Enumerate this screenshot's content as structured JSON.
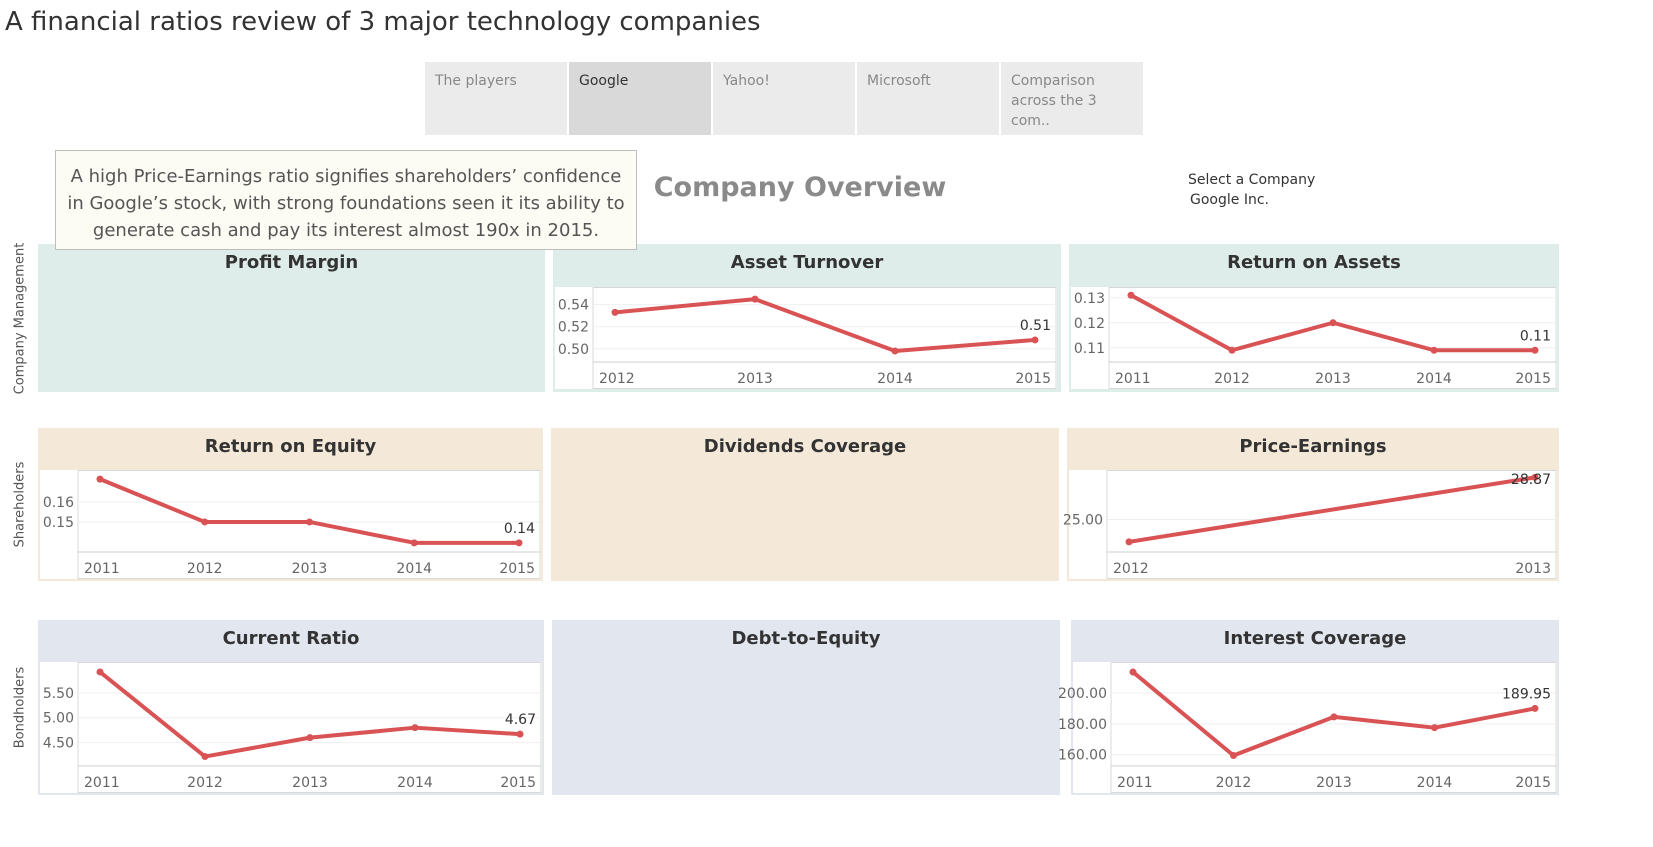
{
  "title": "A financial ratios review of 3 major technology companies",
  "tabs": [
    {
      "label": "The players"
    },
    {
      "label": "Google"
    },
    {
      "label": "Yahoo!"
    },
    {
      "label": "Microsoft"
    },
    {
      "label": "Comparison across the 3 com.."
    }
  ],
  "tooltip": "A high Price-Earnings ratio signifies shareholders’ confidence in Google’s stock, with strong foundations seen it its ability to generate cash and pay its interest almost 190x in 2015.",
  "overview_title": "Company Overview",
  "company_select": {
    "label": "Select a Company",
    "value": "Google Inc."
  },
  "row_labels": {
    "management": "Company Management",
    "shareholders": "Shareholders",
    "bondholders": "Bondholders"
  },
  "colors": {
    "line": "#d95355",
    "management_bg": "#deede9",
    "shareholders_bg": "#f4e9d9",
    "bondholders_bg": "#e1e6ef"
  },
  "chart_data": [
    {
      "id": "profit-margin",
      "type": "line",
      "title": "Profit Margin",
      "x": [],
      "values": []
    },
    {
      "id": "asset-turnover",
      "type": "line",
      "title": "Asset Turnover",
      "x": [
        "2012",
        "2013",
        "2014",
        "2015"
      ],
      "values": [
        0.533,
        0.545,
        0.498,
        0.508
      ],
      "yticks": [
        "0.50",
        "0.52",
        "0.54"
      ],
      "ylim": [
        0.488,
        0.556
      ],
      "last_label": "0.51"
    },
    {
      "id": "return-on-assets",
      "type": "line",
      "title": "Return on Assets",
      "x": [
        "2011",
        "2012",
        "2013",
        "2014",
        "2015"
      ],
      "values": [
        0.131,
        0.109,
        0.12,
        0.109,
        0.109
      ],
      "yticks": [
        "0.11",
        "0.12",
        "0.13"
      ],
      "ylim": [
        0.1043,
        0.1343
      ],
      "last_label": "0.11"
    },
    {
      "id": "return-on-equity",
      "type": "line",
      "title": "Return on Equity",
      "x": [
        "2011",
        "2012",
        "2013",
        "2014",
        "2015"
      ],
      "values": [
        0.1715,
        0.15,
        0.15,
        0.1395,
        0.1395
      ],
      "yticks": [
        "0.15",
        "0.16"
      ],
      "ylim": [
        0.1349,
        0.1761
      ],
      "last_label": "0.14"
    },
    {
      "id": "dividends-coverage",
      "type": "line",
      "title": "Dividends Coverage",
      "x": [],
      "values": []
    },
    {
      "id": "price-earnings",
      "type": "line",
      "title": "Price-Earnings",
      "x": [
        "2012",
        "2013"
      ],
      "values": [
        22.94,
        28.87
      ],
      "yticks": [
        "25.00"
      ],
      "ylim": [
        22.01,
        29.55
      ],
      "last_label": "28.87"
    },
    {
      "id": "current-ratio",
      "type": "line",
      "title": "Current Ratio",
      "x": [
        "2011",
        "2012",
        "2013",
        "2014",
        "2015"
      ],
      "values": [
        5.92,
        4.22,
        4.6,
        4.8,
        4.67
      ],
      "yticks": [
        "4.50",
        "5.00",
        "5.50"
      ],
      "ylim": [
        4.03,
        6.12
      ],
      "last_label": "4.67"
    },
    {
      "id": "debt-to-equity",
      "type": "line",
      "title": "Debt-to-Equity",
      "x": [],
      "values": []
    },
    {
      "id": "interest-coverage",
      "type": "line",
      "title": "Interest Coverage",
      "x": [
        "2011",
        "2012",
        "2013",
        "2014",
        "2015"
      ],
      "values": [
        213.5,
        159.5,
        184.5,
        177.5,
        189.95
      ],
      "yticks": [
        "160.00",
        "180.00",
        "200.00"
      ],
      "ylim": [
        152.7,
        220.0
      ],
      "last_label": "189.95"
    }
  ]
}
